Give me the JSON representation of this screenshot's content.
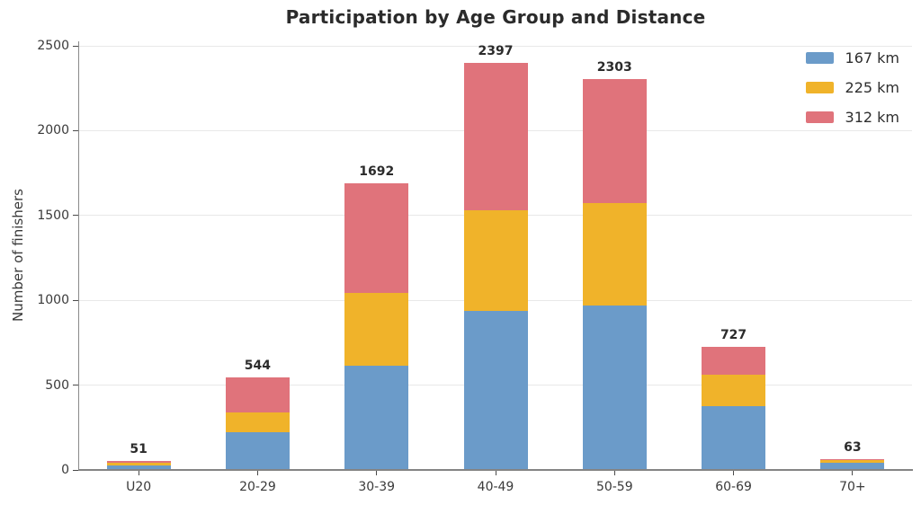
{
  "title": "Participation by Age Group and Distance",
  "chart_data": {
    "type": "bar",
    "stacked": true,
    "title": "Participation by Age Group and Distance",
    "xlabel": "",
    "ylabel": "Number of finishers",
    "categories": [
      "U20",
      "20-29",
      "30-39",
      "40-49",
      "50-59",
      "60-69",
      "70+"
    ],
    "series": [
      {
        "name": "167 km",
        "color": "#6b9bc9",
        "values": [
          28,
          220,
          615,
          937,
          968,
          375,
          45
        ]
      },
      {
        "name": "225 km",
        "color": "#f0b32a",
        "values": [
          12,
          118,
          430,
          595,
          606,
          185,
          15
        ]
      },
      {
        "name": "312 km",
        "color": "#e0737b",
        "values": [
          11,
          206,
          647,
          865,
          729,
          167,
          3
        ]
      }
    ],
    "totals": [
      51,
      544,
      1692,
      2397,
      2303,
      727,
      63
    ],
    "ylim": [
      0,
      2500
    ],
    "yticks": [
      0,
      500,
      1000,
      1500,
      2000,
      2500
    ],
    "grid": true,
    "legend_position": "upper right",
    "legend_labels": [
      "167 km",
      "225 km",
      "312 km"
    ]
  },
  "style_colors": {
    "background": "#ffffff",
    "gridline": "#e8e8e8",
    "spine": "#848484",
    "text_dark": "#2b2b2b",
    "text_tick": "#3a3a3a"
  }
}
